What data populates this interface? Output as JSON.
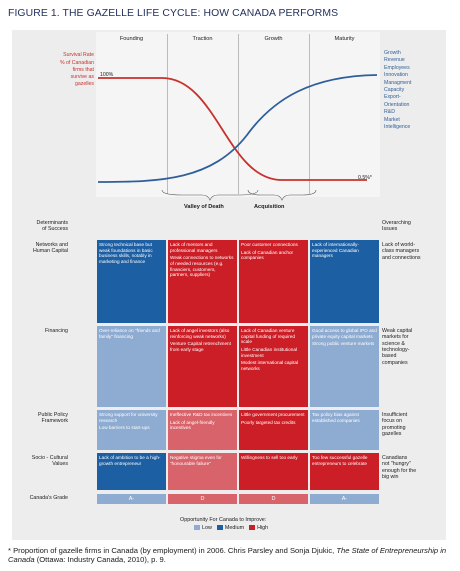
{
  "title": "FIGURE 1. THE GAZELLE LIFE CYCLE: HOW CANADA PERFORMS",
  "stages": [
    "Founding",
    "Traction",
    "Growth",
    "Maturity"
  ],
  "left_axis": {
    "survival_rate": "Survival Rate",
    "description": [
      "% of Canadian",
      "firms that",
      "survive as",
      "gazelles"
    ],
    "start_label": "100%",
    "end_label": "0.5%*"
  },
  "right_axis_items": [
    "Growth",
    "Revenue",
    "Employees",
    "Innovation",
    "Managment",
    "Capacity",
    "Export-",
    "Orientation",
    "R&D",
    "Market",
    "Intelligence"
  ],
  "valley_label": "Valley of Death",
  "acquisition_label": "Acquisition",
  "determinants_header": [
    "Determinants",
    "of Success"
  ],
  "issues_header": [
    "Overarching",
    "Issues"
  ],
  "colors": {
    "high_red": "#cc1e26",
    "medium_red": "#d9636a",
    "high_blue": "#1d5fa3",
    "low_blue": "#8eacd1",
    "panel": "#ededed"
  },
  "rows": [
    {
      "label": [
        "Networks and",
        "Human Capital"
      ],
      "issue": [
        "Lack of world-",
        "class managers",
        "and connections"
      ],
      "cells": [
        {
          "tone": "hi-blue",
          "texts": [
            "Strong technical base but weak foundations in basic business skills, notably in marketing and finance"
          ]
        },
        {
          "tone": "hi-red",
          "texts": [
            "Lack of mentors and professional managers",
            "Weak connections to networks of needed resources (e.g. financiers, customers, partners, suppliers)"
          ]
        },
        {
          "tone": "hi-red",
          "texts": [
            "Poor customer connections",
            "Lack of Canadian anchor companies"
          ]
        },
        {
          "tone": "hi-blue",
          "texts": [
            "Lack of internationally-experienced Canadian managers"
          ]
        }
      ]
    },
    {
      "label": [
        "Financing"
      ],
      "issue": [
        "Weak capital",
        "markets for",
        "science &",
        "technology-",
        "based",
        "companies"
      ],
      "cells": [
        {
          "tone": "lo-blue",
          "texts": [
            "Over-reliance on \"friends and family\" financing"
          ]
        },
        {
          "tone": "hi-red",
          "texts": [
            "Lack of angel investors (also reinforcing weak networks)",
            "Venture Capital retrenchment from early stage"
          ]
        },
        {
          "tone": "hi-red",
          "texts": [
            "Lack of Canadian venture capital funding of required scale",
            "Little Canadian institutional investment",
            "Modest international capital networks"
          ]
        },
        {
          "tone": "lo-blue",
          "texts": [
            "Good access to global IPO and private equity capital markets",
            "Strong public venture markets"
          ]
        }
      ]
    },
    {
      "label": [
        "Public Policy",
        "Framework"
      ],
      "issue": [
        "Insufficient",
        "focus on",
        "promoting",
        "gazelles"
      ],
      "cells": [
        {
          "tone": "lo-blue",
          "texts": [
            "Strong support for university research",
            "Low barriers to start-ups"
          ]
        },
        {
          "tone": "med-red",
          "texts": [
            "Ineffective R&D tax incentives",
            "Lack of angel-friendly incentives"
          ]
        },
        {
          "tone": "hi-red",
          "texts": [
            "Little government procurement",
            "Poorly targeted tax credits"
          ]
        },
        {
          "tone": "lo-blue",
          "texts": [
            "Tax policy bias against established companies"
          ]
        }
      ]
    },
    {
      "label": [
        "Socio - Cultural",
        "Values"
      ],
      "issue": [
        "Canadians",
        "not \"hungry\"",
        "enough for the",
        "big win"
      ],
      "cells": [
        {
          "tone": "hi-blue",
          "texts": [
            "Lack of ambition to be a high-growth entrepreneur"
          ]
        },
        {
          "tone": "med-red",
          "texts": [
            "Negative stigma even for \"honourable failure\""
          ]
        },
        {
          "tone": "hi-red",
          "texts": [
            "Willingness to sell too early"
          ]
        },
        {
          "tone": "hi-red",
          "texts": [
            "Too few successful gazelle entrepreneurs to celebrate"
          ]
        }
      ]
    }
  ],
  "grade_label": "Canada's Grade",
  "grades": [
    {
      "value": "A-",
      "tone": "lo-blue"
    },
    {
      "value": "D",
      "tone": "med-red"
    },
    {
      "value": "D",
      "tone": "med-red"
    },
    {
      "value": "A-",
      "tone": "lo-blue"
    }
  ],
  "legend": {
    "title": "Opportunity For Canada to Improve:",
    "items": [
      {
        "label": "Low",
        "color": "#8eacd1"
      },
      {
        "label": "Medium",
        "color": "#1d5fa3"
      },
      {
        "label": "High",
        "color": "#cc1e26"
      }
    ]
  },
  "footnote": {
    "prefix": "* Proportion of gazelle firms in Canada (by employment) in 2006. Chris Parsley and Sonja Djukic, ",
    "italic": "The State of Entrepreneurship in Canada",
    "suffix": " (Ottawa: Industry Canada, 2010), p. 9."
  }
}
